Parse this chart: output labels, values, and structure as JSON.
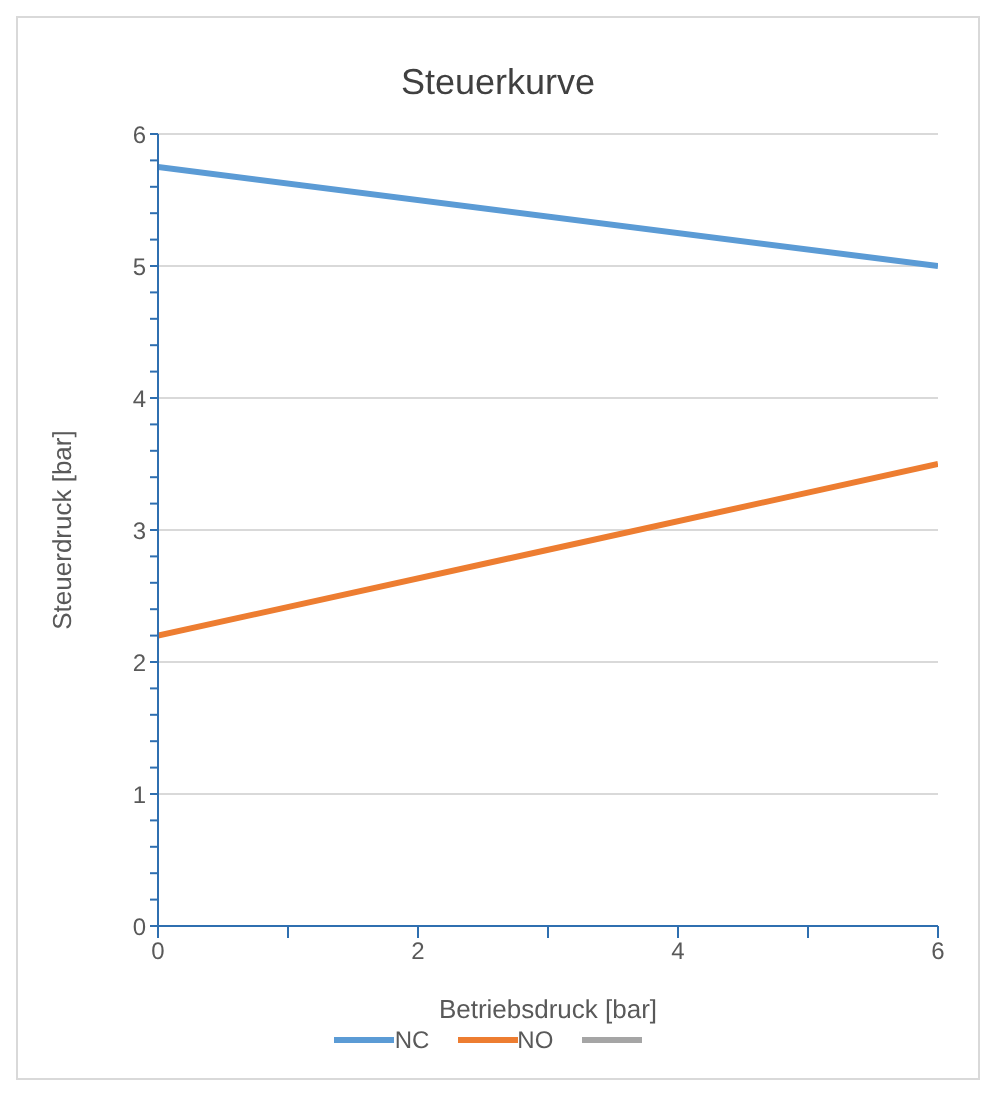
{
  "chart_data": {
    "type": "line",
    "title": "Steuerkurve",
    "xlabel": "Betriebsdruck [bar]",
    "ylabel": "Steuerdruck [bar]",
    "x": [
      0,
      6
    ],
    "series": [
      {
        "name": "NC",
        "color": "#5b9bd5",
        "values": [
          5.75,
          5.0
        ]
      },
      {
        "name": "NO",
        "color": "#ed7d31",
        "values": [
          2.2,
          3.5
        ]
      },
      {
        "color": "#a5a5a5",
        "values": [
          null,
          null
        ]
      }
    ],
    "xlim": [
      0,
      6
    ],
    "xticks": [
      0,
      {
        "value": 1,
        "label": null
      },
      2,
      {
        "value": 3,
        "label": null
      },
      4,
      {
        "value": 5,
        "label": null
      },
      6
    ],
    "ylim": [
      0,
      6
    ],
    "yticks": [
      0,
      {
        "value": 0.2,
        "label": null
      },
      {
        "value": 0.4,
        "label": null
      },
      {
        "value": 0.6,
        "label": null
      },
      {
        "value": 0.8,
        "label": null
      },
      1,
      {
        "value": 1.2,
        "label": null
      },
      {
        "value": 1.4,
        "label": null
      },
      {
        "value": 1.6,
        "label": null
      },
      {
        "value": 1.8,
        "label": null
      },
      2,
      {
        "value": 2.2,
        "label": null
      },
      {
        "value": 2.4,
        "label": null
      },
      {
        "value": 2.6,
        "label": null
      },
      {
        "value": 2.8,
        "label": null
      },
      3,
      {
        "value": 3.2,
        "label": null
      },
      {
        "value": 3.4,
        "label": null
      },
      {
        "value": 3.6,
        "label": null
      },
      {
        "value": 3.8,
        "label": null
      },
      4,
      {
        "value": 4.2,
        "label": null
      },
      {
        "value": 4.4,
        "label": null
      },
      {
        "value": 4.6,
        "label": null
      },
      {
        "value": 4.8,
        "label": null
      },
      5,
      {
        "value": 5.2,
        "label": null
      },
      {
        "value": 5.4,
        "label": null
      },
      {
        "value": 5.6,
        "label": null
      },
      {
        "value": 5.8,
        "label": null
      },
      6
    ],
    "grid": "y",
    "legend": "bottom",
    "marker": "none",
    "line_style": "solid"
  }
}
